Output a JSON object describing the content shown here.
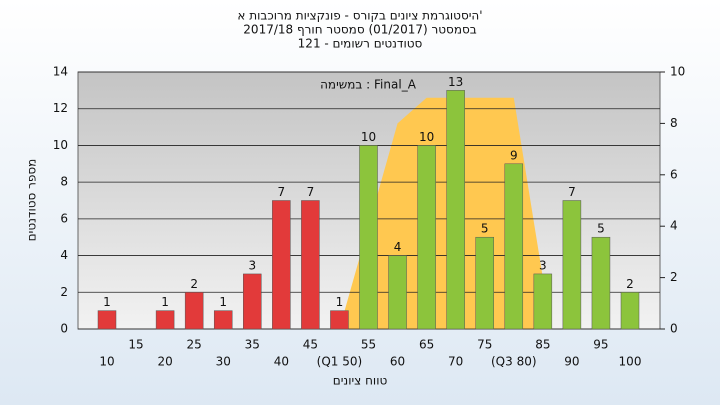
{
  "chart_data": {
    "type": "bar",
    "title": "היסטוגרמת ציונים בקורס - פונקציות מרוכבות א'",
    "subtitle": "בסמסטר (01/2017) סמסטר חורף 2017/18",
    "subtitle2": "סטודנטים רשומים - 121",
    "annotation": "במשימה : Final_A",
    "y_label": "מספר סטודנטים",
    "x_label": "טווח ציונים",
    "categories": [
      "10",
      "15",
      "20",
      "25",
      "30",
      "35",
      "40",
      "45",
      "(Q1 50)",
      "55",
      "60",
      "65",
      "70",
      "75",
      "(Q3 80)",
      "85",
      "90",
      "95",
      "100"
    ],
    "series": [
      {
        "color": "#e23a3a",
        "values": [
          1,
          null,
          1,
          2,
          1,
          3,
          7,
          7,
          1,
          null,
          null,
          null,
          null,
          null,
          null,
          null,
          null,
          null,
          null
        ]
      },
      {
        "color": "#8cc43c",
        "values": [
          null,
          null,
          null,
          null,
          null,
          null,
          null,
          null,
          null,
          10,
          4,
          10,
          13,
          5,
          9,
          3,
          7,
          5,
          2
        ]
      },
      {
        "color": "#ffc850",
        "axis": "y2",
        "values": [
          null,
          null,
          null,
          null,
          null,
          null,
          null,
          null,
          0,
          4,
          8,
          9,
          9,
          9,
          9,
          2,
          null,
          null,
          null
        ]
      }
    ],
    "ylim": [
      0,
      14
    ],
    "yticks": [
      0,
      2,
      4,
      6,
      8,
      10,
      12,
      14
    ],
    "y2lim": [
      0,
      10
    ],
    "y2ticks": [
      0,
      2,
      4,
      6,
      8,
      10
    ],
    "grid": true
  }
}
